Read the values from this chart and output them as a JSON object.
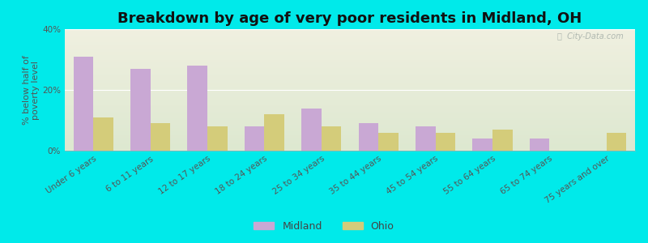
{
  "title": "Breakdown by age of very poor residents in Midland, OH",
  "ylabel": "% below half of\npoverty level",
  "categories": [
    "Under 6 years",
    "6 to 11 years",
    "12 to 17 years",
    "18 to 24 years",
    "25 to 34 years",
    "35 to 44 years",
    "45 to 54 years",
    "55 to 64 years",
    "65 to 74 years",
    "75 years and over"
  ],
  "midland_values": [
    31,
    27,
    28,
    8,
    14,
    9,
    8,
    4,
    4,
    0
  ],
  "ohio_values": [
    11,
    9,
    8,
    12,
    8,
    6,
    6,
    7,
    0,
    6
  ],
  "midland_color": "#c9a8d4",
  "ohio_color": "#d4cc7a",
  "background_outer": "#00eaea",
  "background_plot_top": "#f0f0e0",
  "background_plot_bottom": "#dde8d0",
  "ylim": [
    0,
    40
  ],
  "yticks": [
    0,
    20,
    40
  ],
  "ytick_labels": [
    "0%",
    "20%",
    "40%"
  ],
  "bar_width": 0.35,
  "title_fontsize": 13,
  "axis_label_fontsize": 8,
  "tick_fontsize": 7.5,
  "legend_fontsize": 9,
  "watermark_text": "ⓘ  City-Data.com",
  "watermark_color": "#b0b8b0"
}
